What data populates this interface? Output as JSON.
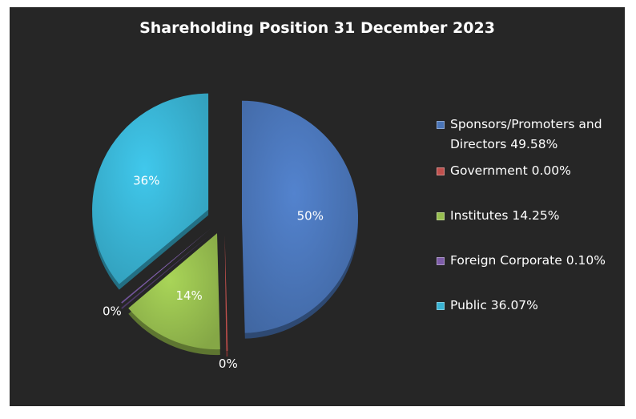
{
  "chart_data": {
    "type": "pie",
    "title": "Shareholding Position 31 December 2023",
    "slices": [
      {
        "name": "Sponsors/Promoters and Directors 49.58%",
        "value": 49.58,
        "label": "50%",
        "color": "#4a75b8"
      },
      {
        "name": "Government 0.00%",
        "value": 0.0,
        "label": "0%",
        "color": "#c0504d"
      },
      {
        "name": "Institutes 14.25%",
        "value": 14.25,
        "label": "14%",
        "color": "#97be4f"
      },
      {
        "name": "Foreign Corporate 0.10%",
        "value": 0.1,
        "label": "0%",
        "color": "#7d5ca8"
      },
      {
        "name": "Public 36.07%",
        "value": 36.07,
        "label": "36%",
        "color": "#39b3d3"
      }
    ],
    "legend_position": "right",
    "exploded": true,
    "style": "3d"
  }
}
